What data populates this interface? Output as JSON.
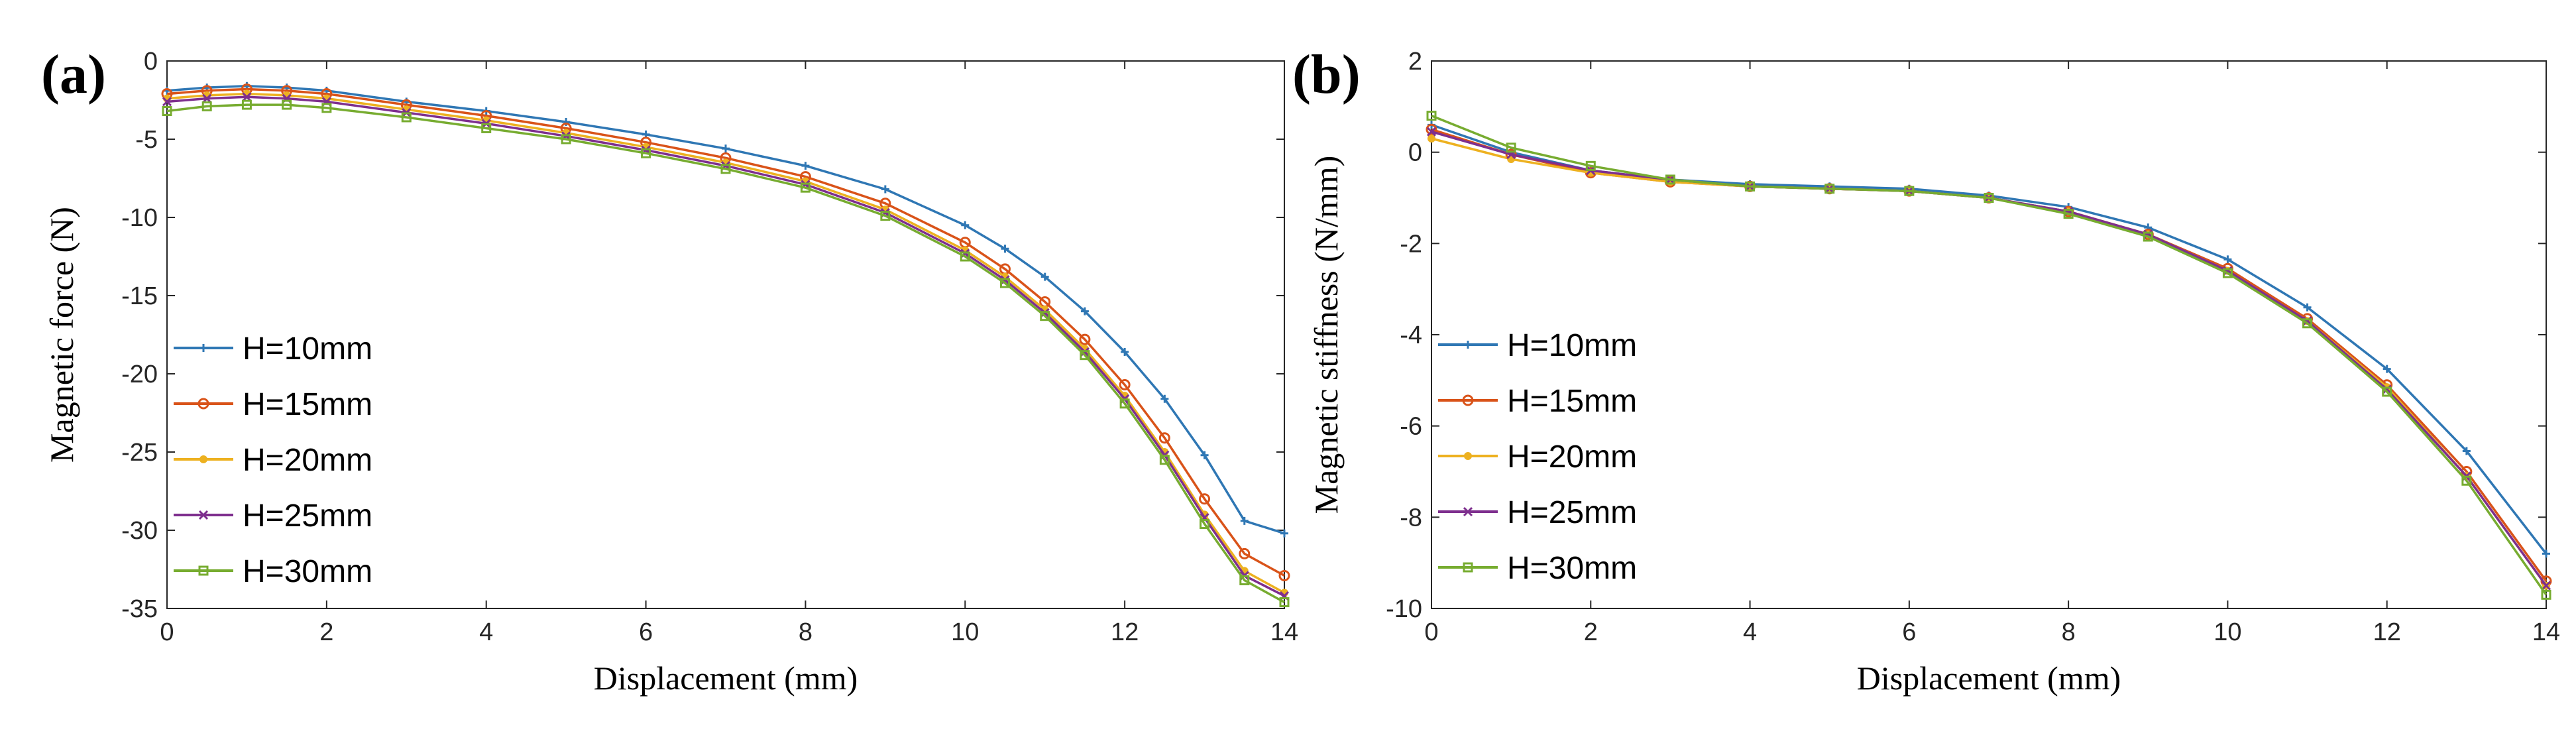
{
  "chart_data": [
    {
      "type": "line",
      "panel_label": "(a)",
      "xlabel": "Displacement (mm)",
      "ylabel": "Magnetic  force (N)",
      "xlim": [
        0,
        14
      ],
      "ylim": [
        -35,
        0
      ],
      "xticks": [
        0,
        2,
        4,
        6,
        8,
        10,
        12,
        14
      ],
      "yticks": [
        0,
        -5,
        -10,
        -15,
        -20,
        -25,
        -30,
        -35
      ],
      "legend_position": "bottom-left",
      "series": [
        {
          "name": "H=10mm",
          "color": "#2f77b4",
          "marker": "plus",
          "x": [
            0,
            0.5,
            1,
            1.5,
            2,
            3,
            4,
            5,
            6,
            7,
            8,
            9,
            10,
            10.5,
            11,
            11.5,
            12,
            12.5,
            13,
            13.5,
            14
          ],
          "y": [
            -1.9,
            -1.7,
            -1.6,
            -1.7,
            -1.9,
            -2.6,
            -3.2,
            -3.9,
            -4.7,
            -5.6,
            -6.7,
            -8.2,
            -10.5,
            -12.0,
            -13.8,
            -16.0,
            -18.6,
            -21.6,
            -25.2,
            -29.4,
            -30.2
          ]
        },
        {
          "name": "H=15mm",
          "color": "#d95319",
          "marker": "circle",
          "x": [
            0,
            0.5,
            1,
            1.5,
            2,
            3,
            4,
            5,
            6,
            7,
            8,
            9,
            10,
            10.5,
            11,
            11.5,
            12,
            12.5,
            13,
            13.5,
            14
          ],
          "y": [
            -2.1,
            -1.9,
            -1.8,
            -1.9,
            -2.1,
            -2.8,
            -3.5,
            -4.3,
            -5.2,
            -6.2,
            -7.4,
            -9.1,
            -11.6,
            -13.3,
            -15.4,
            -17.8,
            -20.7,
            -24.1,
            -28.0,
            -31.5,
            -32.9
          ]
        },
        {
          "name": "H=20mm",
          "color": "#edb120",
          "marker": "dot",
          "x": [
            0,
            0.5,
            1,
            1.5,
            2,
            3,
            4,
            5,
            6,
            7,
            8,
            9,
            10,
            10.5,
            11,
            11.5,
            12,
            12.5,
            13,
            13.5,
            14
          ],
          "y": [
            -2.4,
            -2.2,
            -2.1,
            -2.2,
            -2.4,
            -3.1,
            -3.8,
            -4.6,
            -5.5,
            -6.5,
            -7.7,
            -9.5,
            -12.1,
            -13.8,
            -15.9,
            -18.4,
            -21.4,
            -25.0,
            -29.0,
            -32.6,
            -34.0
          ]
        },
        {
          "name": "H=25mm",
          "color": "#7e2f8e",
          "marker": "x",
          "x": [
            0,
            0.5,
            1,
            1.5,
            2,
            3,
            4,
            5,
            6,
            7,
            8,
            9,
            10,
            10.5,
            11,
            11.5,
            12,
            12.5,
            13,
            13.5,
            14
          ],
          "y": [
            -2.6,
            -2.4,
            -2.3,
            -2.4,
            -2.6,
            -3.3,
            -4.0,
            -4.8,
            -5.7,
            -6.7,
            -7.9,
            -9.7,
            -12.3,
            -14.0,
            -16.1,
            -18.6,
            -21.6,
            -25.2,
            -29.2,
            -32.9,
            -34.2
          ]
        },
        {
          "name": "H=30mm",
          "color": "#77ac30",
          "marker": "square",
          "x": [
            0,
            0.5,
            1,
            1.5,
            2,
            3,
            4,
            5,
            6,
            7,
            8,
            9,
            10,
            10.5,
            11,
            11.5,
            12,
            12.5,
            13,
            13.5,
            14
          ],
          "y": [
            -3.2,
            -2.9,
            -2.8,
            -2.8,
            -3.0,
            -3.6,
            -4.3,
            -5.0,
            -5.9,
            -6.9,
            -8.1,
            -9.9,
            -12.5,
            -14.2,
            -16.3,
            -18.8,
            -21.9,
            -25.5,
            -29.6,
            -33.2,
            -34.6
          ]
        }
      ]
    },
    {
      "type": "line",
      "panel_label": "(b)",
      "xlabel": "Displacement (mm)",
      "ylabel": "Magnetic stiffness (N/mm)",
      "xlim": [
        0,
        14
      ],
      "ylim": [
        -10,
        2
      ],
      "xticks": [
        0,
        2,
        4,
        6,
        8,
        10,
        12,
        14
      ],
      "yticks": [
        2,
        0,
        -2,
        -4,
        -6,
        -8,
        -10
      ],
      "legend_position": "bottom-left",
      "series": [
        {
          "name": "H=10mm",
          "color": "#2f77b4",
          "marker": "plus",
          "x": [
            0,
            1,
            2,
            3,
            4,
            5,
            6,
            7,
            8,
            9,
            10,
            11,
            12,
            13,
            14
          ],
          "y": [
            0.6,
            0.0,
            -0.4,
            -0.6,
            -0.7,
            -0.75,
            -0.8,
            -0.95,
            -1.2,
            -1.65,
            -2.35,
            -3.4,
            -4.75,
            -6.55,
            -8.8
          ]
        },
        {
          "name": "H=15mm",
          "color": "#d95319",
          "marker": "circle",
          "x": [
            0,
            1,
            2,
            3,
            4,
            5,
            6,
            7,
            8,
            9,
            10,
            11,
            12,
            13,
            14
          ],
          "y": [
            0.5,
            -0.05,
            -0.45,
            -0.65,
            -0.75,
            -0.8,
            -0.85,
            -1.0,
            -1.3,
            -1.8,
            -2.55,
            -3.65,
            -5.1,
            -7.0,
            -9.4
          ]
        },
        {
          "name": "H=20mm",
          "color": "#edb120",
          "marker": "dot",
          "x": [
            0,
            1,
            2,
            3,
            4,
            5,
            6,
            7,
            8,
            9,
            10,
            11,
            12,
            13,
            14
          ],
          "y": [
            0.3,
            -0.15,
            -0.45,
            -0.65,
            -0.75,
            -0.8,
            -0.85,
            -1.0,
            -1.3,
            -1.8,
            -2.6,
            -3.7,
            -5.15,
            -7.1,
            -9.5
          ]
        },
        {
          "name": "H=25mm",
          "color": "#7e2f8e",
          "marker": "x",
          "x": [
            0,
            1,
            2,
            3,
            4,
            5,
            6,
            7,
            8,
            9,
            10,
            11,
            12,
            13,
            14
          ],
          "y": [
            0.45,
            -0.05,
            -0.4,
            -0.6,
            -0.75,
            -0.8,
            -0.85,
            -1.0,
            -1.3,
            -1.8,
            -2.6,
            -3.7,
            -5.2,
            -7.1,
            -9.5
          ]
        },
        {
          "name": "H=30mm",
          "color": "#77ac30",
          "marker": "square",
          "x": [
            0,
            1,
            2,
            3,
            4,
            5,
            6,
            7,
            8,
            9,
            10,
            11,
            12,
            13,
            14
          ],
          "y": [
            0.8,
            0.1,
            -0.3,
            -0.6,
            -0.75,
            -0.8,
            -0.85,
            -1.0,
            -1.35,
            -1.85,
            -2.65,
            -3.75,
            -5.25,
            -7.2,
            -9.7
          ]
        }
      ]
    }
  ]
}
